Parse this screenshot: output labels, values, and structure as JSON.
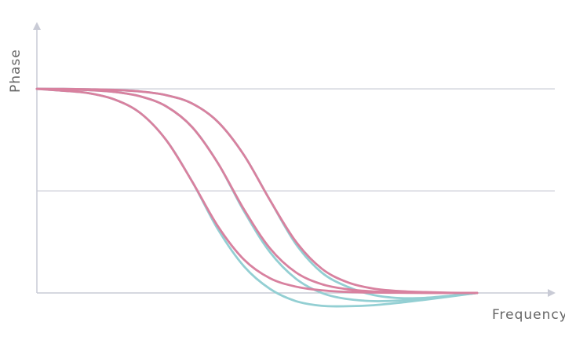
{
  "chart_data": {
    "type": "line",
    "x_label": "Frequency",
    "y_label": "Phase",
    "x": [
      0,
      0.05,
      0.1,
      0.15,
      0.2,
      0.25,
      0.3,
      0.35,
      0.4,
      0.45,
      0.5,
      0.55,
      0.6,
      0.65,
      0.7,
      0.75,
      0.8,
      0.85
    ],
    "xlim": [
      0,
      1
    ],
    "ylim": [
      0,
      1.32
    ],
    "yticks": [
      0.5,
      1
    ],
    "grid": true,
    "series": [
      {
        "color": "#93cfd3",
        "values": [
          1,
          0.991,
          0.979,
          0.948,
          0.881,
          0.748,
          0.545,
          0.31,
          0.13,
          0.02,
          -0.04,
          -0.063,
          -0.065,
          -0.06,
          -0.048,
          -0.033,
          -0.017,
          0
        ]
      },
      {
        "color": "#93cfd3",
        "values": [
          1,
          0.998,
          0.994,
          0.985,
          0.963,
          0.914,
          0.812,
          0.634,
          0.4,
          0.2,
          0.07,
          0.0,
          -0.03,
          -0.04,
          -0.037,
          -0.027,
          -0.014,
          0
        ]
      },
      {
        "color": "#93cfd3",
        "values": [
          1,
          1,
          0.998,
          0.995,
          0.987,
          0.969,
          0.928,
          0.837,
          0.675,
          0.455,
          0.24,
          0.1,
          0.03,
          -0.01,
          -0.025,
          -0.024,
          -0.013,
          0
        ]
      },
      {
        "color": "#d8819f",
        "values": [
          1,
          0.991,
          0.979,
          0.948,
          0.881,
          0.748,
          0.545,
          0.325,
          0.163,
          0.072,
          0.031,
          0.013,
          0.005,
          0.002,
          0.001,
          0,
          0,
          0
        ]
      },
      {
        "color": "#d8819f",
        "values": [
          1,
          0.998,
          0.994,
          0.985,
          0.963,
          0.914,
          0.812,
          0.634,
          0.409,
          0.219,
          0.101,
          0.043,
          0.018,
          0.007,
          0.003,
          0.001,
          0,
          0
        ]
      },
      {
        "color": "#d8819f",
        "values": [
          1,
          1,
          0.998,
          0.995,
          0.987,
          0.969,
          0.928,
          0.837,
          0.675,
          0.455,
          0.252,
          0.119,
          0.052,
          0.021,
          0.009,
          0.004,
          0.001,
          0
        ]
      }
    ]
  }
}
